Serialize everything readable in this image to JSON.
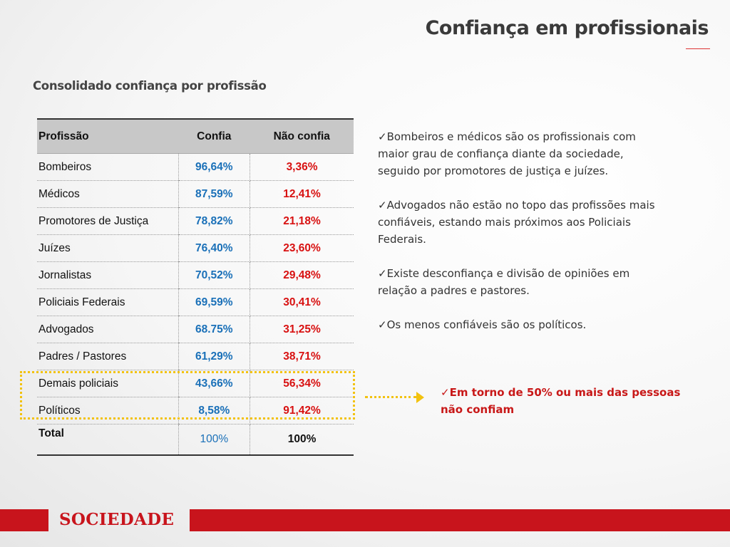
{
  "header": {
    "title": "Confiança em profissionais"
  },
  "subtitle": "Consolidado confiança por profissão",
  "table": {
    "headers": [
      "Profissão",
      "Confia",
      "Não confia"
    ],
    "rows": [
      [
        "Bombeiros",
        "96,64%",
        "3,36%"
      ],
      [
        "Médicos",
        "87,59%",
        "12,41%"
      ],
      [
        "Promotores de Justiça",
        "78,82%",
        "21,18%"
      ],
      [
        "Juízes",
        "76,40%",
        "23,60%"
      ],
      [
        "Jornalistas",
        "70,52%",
        "29,48%"
      ],
      [
        "Policiais Federais",
        "69,59%",
        "30,41%"
      ],
      [
        "Advogados",
        "68.75%",
        "31,25%"
      ],
      [
        "Padres / Pastores",
        "61,29%",
        "38,71%"
      ],
      [
        "Demais policiais",
        "43,66%",
        "56,34%"
      ],
      [
        "Políticos",
        "8,58%",
        "91,42%"
      ]
    ],
    "total": [
      "Total",
      "100%",
      "100%"
    ]
  },
  "bullets": [
    "✓Bombeiros e médicos são os profissionais com maior grau de confiança diante da sociedade, seguido por promotores de justiça e juízes.",
    "✓Advogados não estão no topo das profissões mais confiáveis, estando mais próximos aos Policiais Federais.",
    "✓Existe desconfiança e divisão de opiniões em relação a padres e pastores.",
    "✓Os menos confiáveis são os políticos."
  ],
  "callout": "✓Em torno de 50% ou mais das pessoas não confiam",
  "footer": {
    "label": "SOCIEDADE"
  },
  "colors": {
    "accent_red": "#c8141c",
    "trust_blue": "#1a70b8",
    "distrust_red": "#d81111",
    "highlight_yellow": "#f2c20f"
  }
}
